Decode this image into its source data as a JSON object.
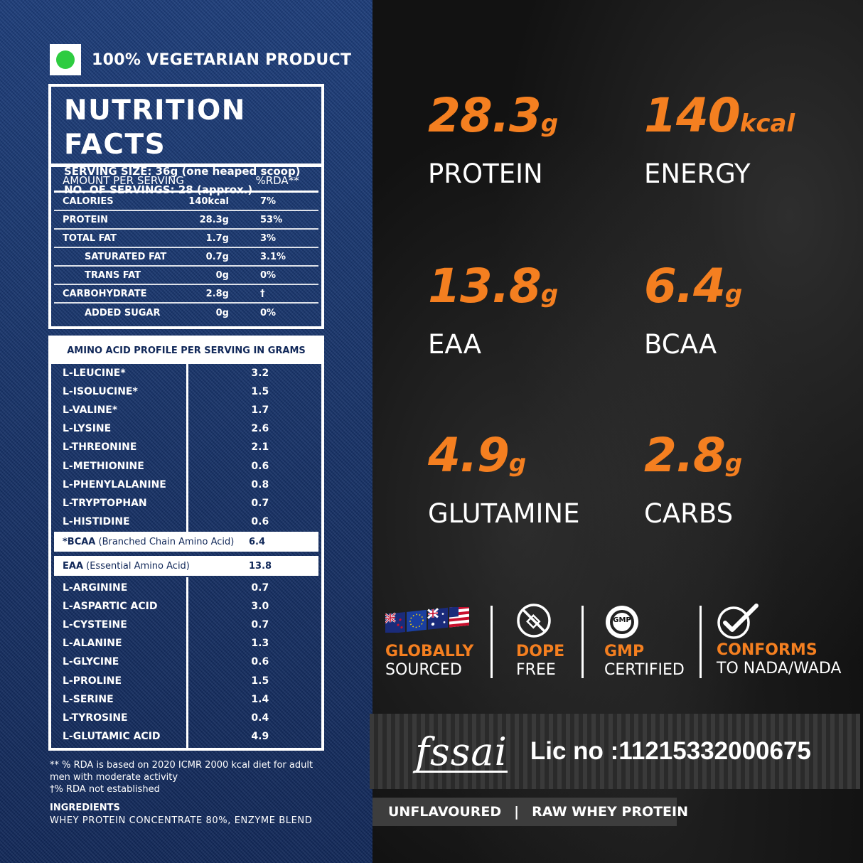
{
  "veg_label": "100% VEGETARIAN PRODUCT",
  "nutrition": {
    "title": "NUTRITION FACTS",
    "serving_size": "SERVING SIZE: 36g (one heaped scoop)",
    "servings": "NO. OF SERVINGS: 28 (approx.)",
    "header_amount": "AMOUNT PER SERVING",
    "header_rda": "%RDA**",
    "rows": [
      {
        "name": "CALORIES",
        "value": "140kcal",
        "rda": "7%"
      },
      {
        "name": "PROTEIN",
        "value": "28.3g",
        "rda": "53%"
      },
      {
        "name": "TOTAL FAT",
        "value": "1.7g",
        "rda": "3%"
      },
      {
        "name": "SATURATED FAT",
        "value": "0.7g",
        "rda": "3.1%"
      },
      {
        "name": "TRANS FAT",
        "value": "0g",
        "rda": "0%"
      },
      {
        "name": "CARBOHYDRATE",
        "value": "2.8g",
        "rda": "†"
      },
      {
        "name": "ADDED SUGAR",
        "value": "0g",
        "rda": "0%"
      }
    ]
  },
  "amino": {
    "title": "AMINO ACID PROFILE PER SERVING IN GRAMS",
    "essential": [
      {
        "name": "L-LEUCINE*",
        "value": "3.2"
      },
      {
        "name": "L-ISOLUCINE*",
        "value": "1.5"
      },
      {
        "name": "L-VALINE*",
        "value": "1.7"
      },
      {
        "name": "L-LYSINE",
        "value": "2.6"
      },
      {
        "name": "L-THREONINE",
        "value": "2.1"
      },
      {
        "name": "L-METHIONINE",
        "value": "0.6"
      },
      {
        "name": "L-PHENYLALANINE",
        "value": "0.8"
      },
      {
        "name": "L-TRYPTOPHAN",
        "value": "0.7"
      },
      {
        "name": "L-HISTIDINE",
        "value": "0.6"
      }
    ],
    "bcaa_bold": "*BCAA",
    "bcaa_rest": " (Branched Chain Amino Acid)",
    "bcaa_value": "6.4",
    "eaa_bold": "EAA",
    "eaa_rest": " (Essential Amino Acid)",
    "eaa_value": "13.8",
    "others": [
      {
        "name": "L-ARGININE",
        "value": "0.7"
      },
      {
        "name": "L-ASPARTIC ACID",
        "value": "3.0"
      },
      {
        "name": "L-CYSTEINE",
        "value": "0.7"
      },
      {
        "name": "L-ALANINE",
        "value": "1.3"
      },
      {
        "name": "L-GLYCINE",
        "value": "0.6"
      },
      {
        "name": "L-PROLINE",
        "value": "1.5"
      },
      {
        "name": "L-SERINE",
        "value": "1.4"
      },
      {
        "name": "L-TYROSINE",
        "value": "0.4"
      },
      {
        "name": "L-GLUTAMIC ACID",
        "value": "4.9"
      }
    ]
  },
  "footnotes": {
    "rda_note": "** % RDA is based on 2020 ICMR 2000 kcal diet for adult men with moderate activity",
    "dagger_note": "†% RDA not established",
    "ingredients_title": "INGREDIENTS",
    "ingredients": "WHEY PROTEIN CONCENTRATE 80%, ENZYME BLEND"
  },
  "stats": [
    {
      "num": "28.3",
      "unit": "g",
      "label": "PROTEIN"
    },
    {
      "num": "140",
      "unit": "kcal",
      "label": "ENERGY"
    },
    {
      "num": "13.8",
      "unit": "g",
      "label": "EAA"
    },
    {
      "num": "6.4",
      "unit": "g",
      "label": "BCAA"
    },
    {
      "num": "4.9",
      "unit": "g",
      "label": "GLUTAMINE"
    },
    {
      "num": "2.8",
      "unit": "g",
      "label": "CARBS"
    }
  ],
  "badges": [
    {
      "top": "GLOBALLY",
      "bottom": "SOURCED",
      "icon": "flags-icon"
    },
    {
      "top": "DOPE",
      "bottom": "FREE",
      "icon": "no-dope-icon"
    },
    {
      "top": "GMP",
      "bottom": "CERTIFIED",
      "icon": "gmp-seal-icon"
    },
    {
      "top": "CONFORMS",
      "bottom": "TO NADA/WADA",
      "icon": "checkmark-icon"
    }
  ],
  "gmp_seal_text": "GMP",
  "fssai": {
    "logo": "fssai",
    "license": "Lic no :11215332000675"
  },
  "flavour": {
    "left": "UNFLAVOURED",
    "sep": "|",
    "right": "RAW WHEY PROTEIN"
  },
  "colors": {
    "accent": "#f47f20",
    "denim": "#163166",
    "dark": "#121212",
    "veg_green": "#2ecc40"
  }
}
